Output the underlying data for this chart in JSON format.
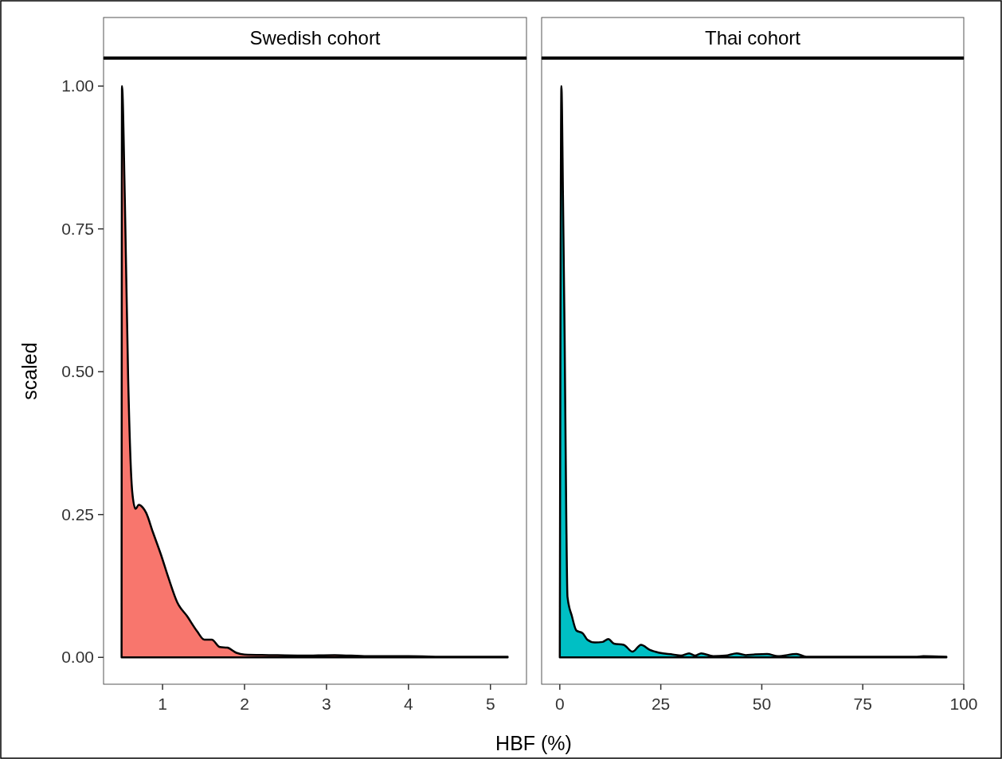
{
  "chart_data": [
    {
      "type": "area",
      "title": "Swedish cohort",
      "xlabel": "HBF (%)",
      "ylabel": "scaled",
      "xlim": [
        0.28,
        5.44
      ],
      "ylim": [
        -0.047,
        1.049
      ],
      "xticks": [
        1,
        2,
        3,
        4,
        5
      ],
      "yticks": [
        {
          "value": 0,
          "label": "0.00"
        },
        {
          "value": 0.25,
          "label": "0.25"
        },
        {
          "value": 0.5,
          "label": "0.50"
        },
        {
          "value": 0.75,
          "label": "0.75"
        },
        {
          "value": 1,
          "label": "1.00"
        }
      ],
      "grid": false,
      "series": [
        {
          "color": "#f8766d",
          "x": [
            0.5,
            0.505,
            0.54,
            0.58,
            0.63,
            0.67,
            0.71,
            0.76,
            0.8,
            0.88,
            0.98,
            1.07,
            1.18,
            1.3,
            1.42,
            1.51,
            1.6,
            1.7,
            1.79,
            1.9,
            2.0,
            2.3,
            2.7,
            3.1,
            3.5,
            4.0,
            4.5,
            5.21
          ],
          "values": [
            0,
            1.0,
            0.8,
            0.49,
            0.29,
            0.26,
            0.267,
            0.262,
            0.253,
            0.22,
            0.18,
            0.14,
            0.096,
            0.072,
            0.046,
            0.031,
            0.031,
            0.018,
            0.017,
            0.008,
            0.005,
            0.004,
            0.003,
            0.004,
            0.002,
            0.002,
            0.001,
            0.001
          ]
        }
      ]
    },
    {
      "type": "area",
      "title": "Thai cohort",
      "xlim": [
        -4.5,
        100
      ],
      "ylim": [
        -0.047,
        1.049
      ],
      "xticks": [
        0,
        25,
        50,
        75,
        100
      ],
      "tick_labels": "x",
      "grid": false,
      "series": [
        {
          "color": "#00bfc4",
          "x": [
            0,
            0.4,
            0.8,
            1.2,
            1.6,
            1.9,
            3.0,
            4.1,
            5.7,
            6.8,
            8.7,
            10.6,
            12.0,
            13.4,
            15.8,
            18,
            20.1,
            22.3,
            24.7,
            28,
            30,
            32,
            33.5,
            35,
            38,
            41,
            43.8,
            46,
            48,
            51.3,
            54,
            58.6,
            61,
            70,
            88,
            90,
            95.7
          ],
          "values": [
            0,
            1.0,
            0.8,
            0.56,
            0.25,
            0.106,
            0.072,
            0.047,
            0.042,
            0.031,
            0.026,
            0.027,
            0.032,
            0.024,
            0.022,
            0.01,
            0.022,
            0.013,
            0.008,
            0.005,
            0.003,
            0.007,
            0.003,
            0.007,
            0.002,
            0.003,
            0.007,
            0.004,
            0.005,
            0.006,
            0.002,
            0.006,
            0.001,
            0.001,
            0.001,
            0.002,
            0.001
          ]
        }
      ]
    }
  ]
}
